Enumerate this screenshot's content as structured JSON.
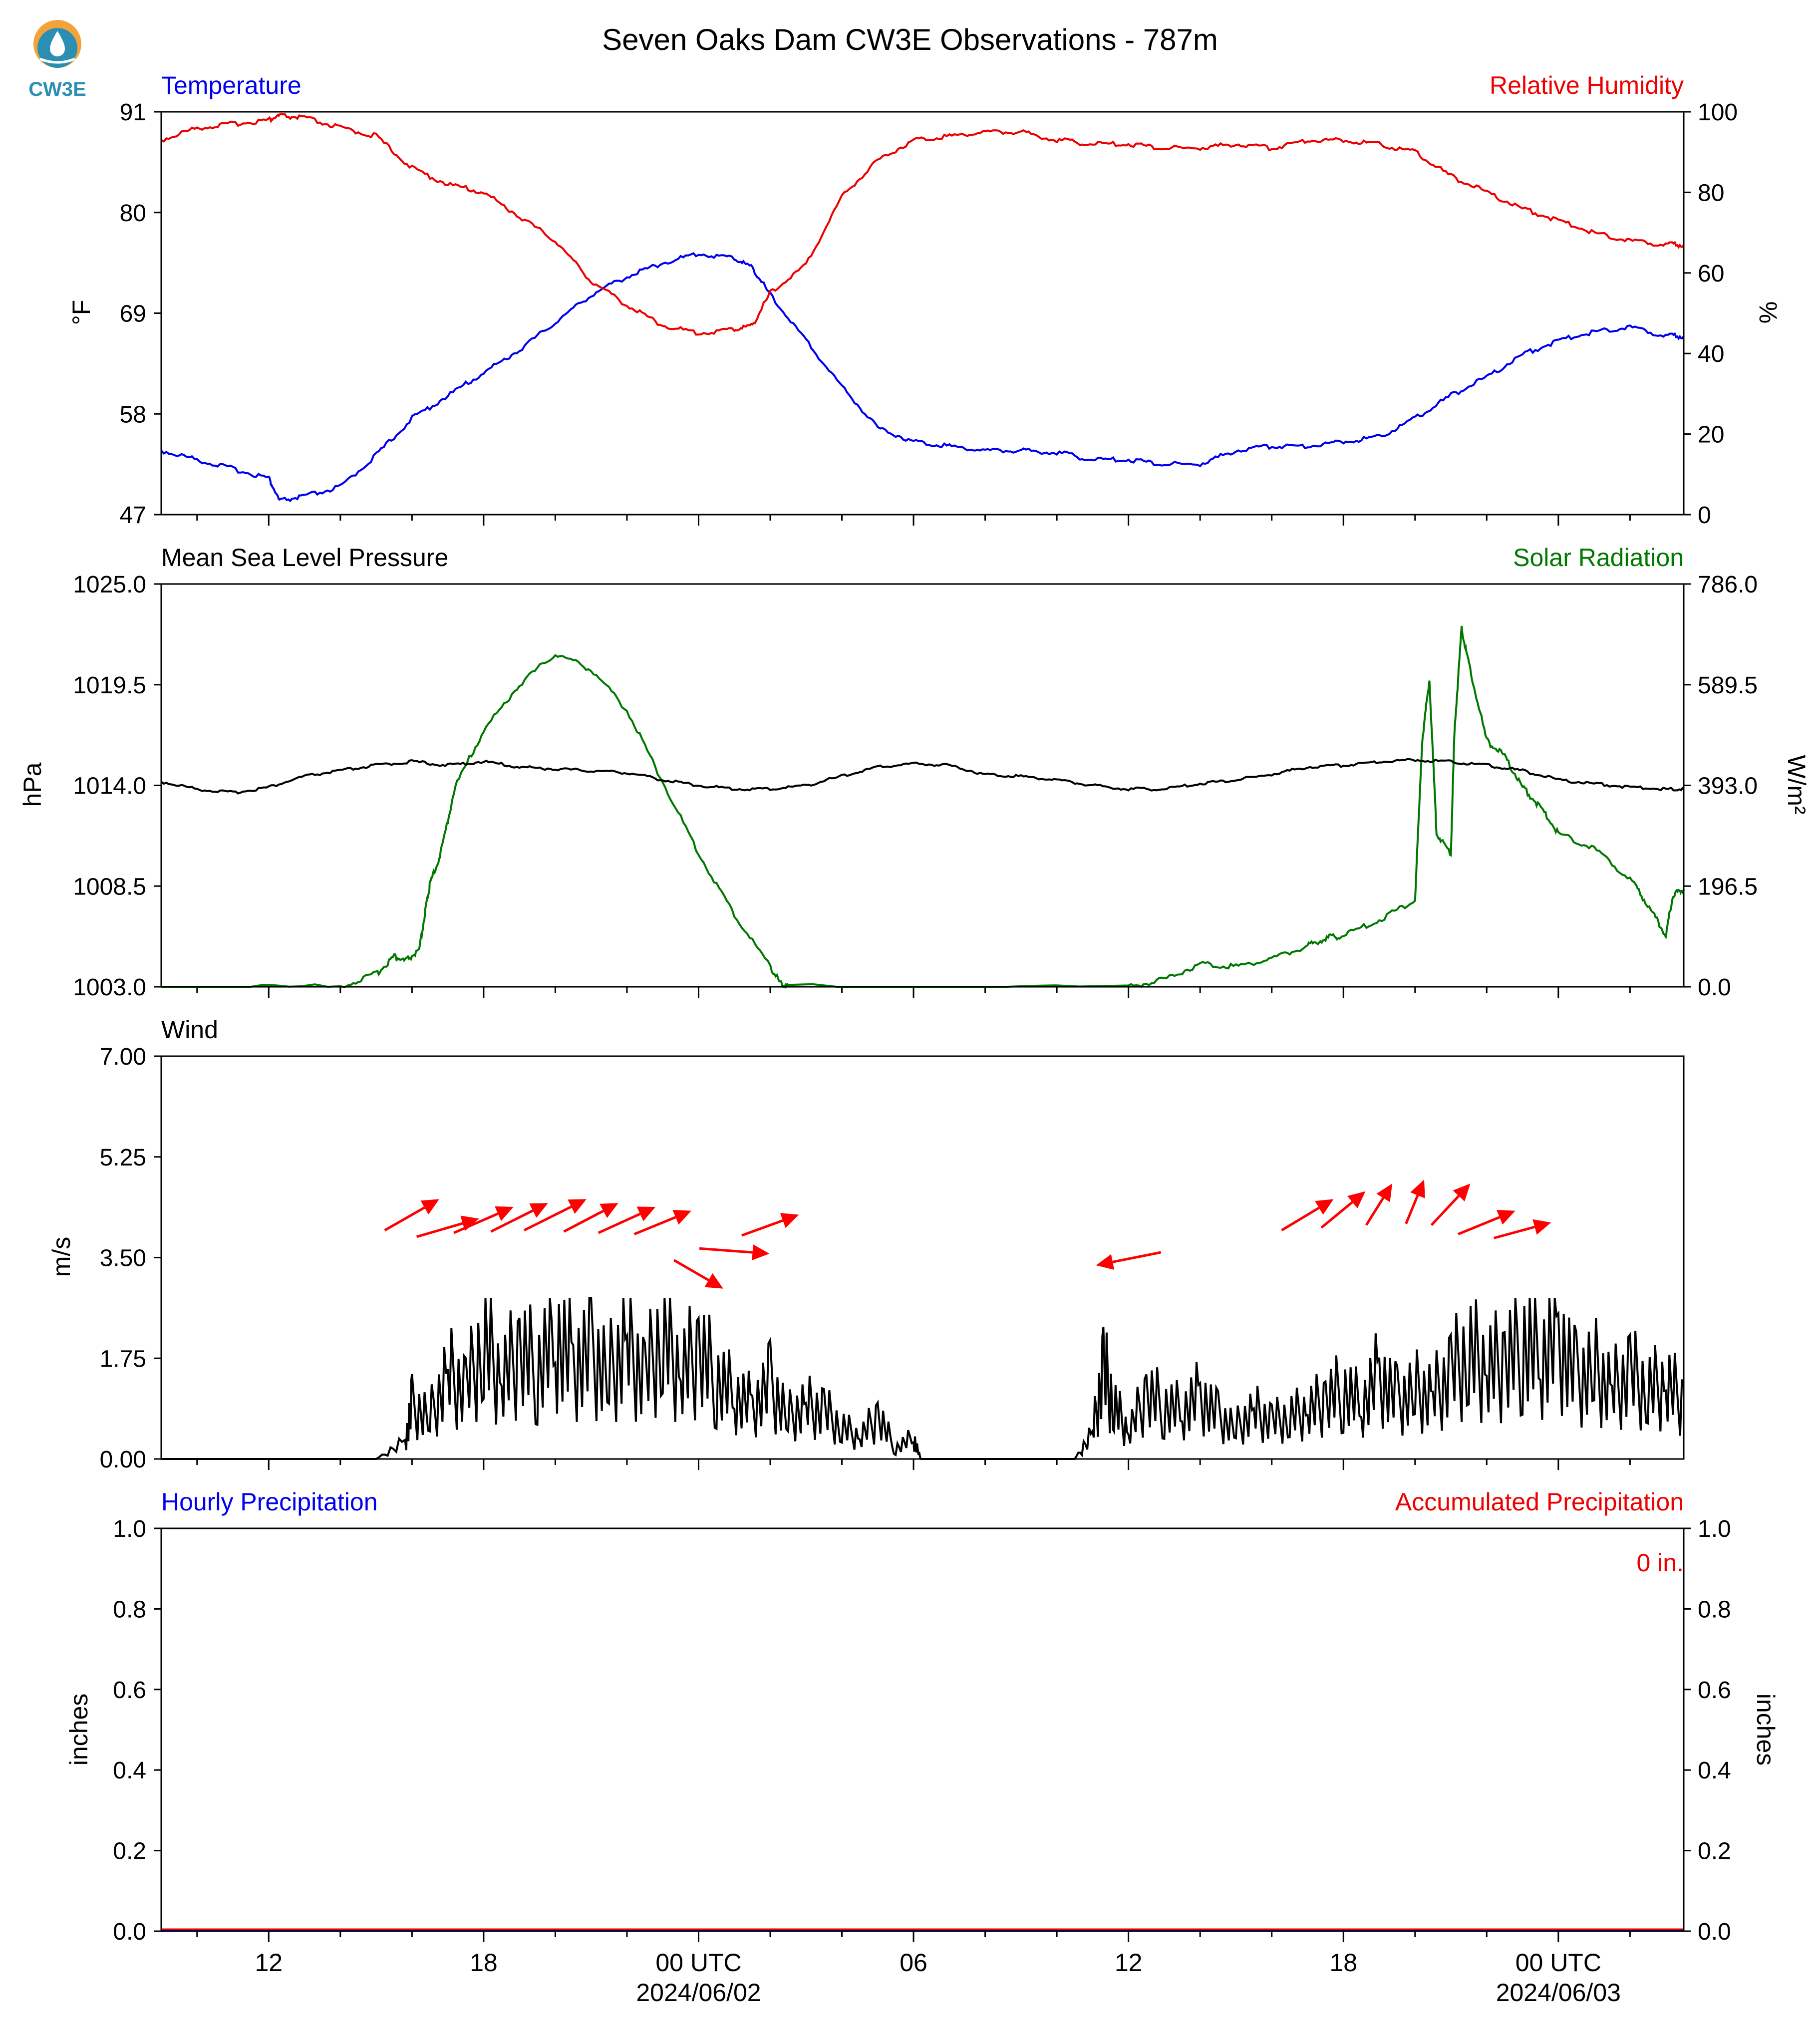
{
  "title": "Seven Oaks Dam CW3E Observations - 787m",
  "logo": {
    "text": "CW3E",
    "color": "#2a8fb3",
    "accent": "#f2a33a",
    "icon": "cw3e-logo-icon"
  },
  "x_axis": {
    "range_hours": [
      -15,
      27.5
    ],
    "major_ticks": [
      {
        "h": -12,
        "label": "12",
        "sub": ""
      },
      {
        "h": -6,
        "label": "18",
        "sub": ""
      },
      {
        "h": 0,
        "label": "00 UTC",
        "sub": "2024/06/02"
      },
      {
        "h": 6,
        "label": "06",
        "sub": ""
      },
      {
        "h": 12,
        "label": "12",
        "sub": ""
      },
      {
        "h": 18,
        "label": "18",
        "sub": ""
      },
      {
        "h": 24,
        "label": "00 UTC",
        "sub": "2024/06/03"
      }
    ],
    "minor_ticks": [
      -14,
      -10,
      -8,
      -4,
      -2,
      2,
      4,
      8,
      10,
      14,
      16,
      20,
      22,
      26
    ]
  },
  "colors": {
    "temperature": "#0000ee",
    "humidity": "#ee0000",
    "pressure": "#000000",
    "solar": "#007800",
    "wind_speed": "#000000",
    "wind_arrow": "#ff0000",
    "hourly_precip": "#0000ee",
    "accum_precip": "#ee0000"
  },
  "chart_data": [
    {
      "type": "line",
      "left_title": "Temperature",
      "right_title": "Relative Humidity",
      "ylabel_left": "°F",
      "ylabel_right": "%",
      "ylim_left": [
        47,
        91
      ],
      "ylim_right": [
        0,
        100
      ],
      "yticks_left": [
        "91",
        "80",
        "69",
        "58",
        "47"
      ],
      "yticks_right": [
        "100",
        "80",
        "60",
        "40",
        "20",
        "0"
      ],
      "x_hours": [
        -15,
        -14,
        -13,
        -12,
        -11.7,
        -11,
        -10,
        -9,
        -8,
        -7,
        -6,
        -5,
        -4,
        -3,
        -2,
        -1,
        0,
        1,
        1.5,
        2,
        3,
        4,
        5,
        6,
        7,
        8,
        9,
        10,
        11,
        12,
        13,
        14,
        15,
        16,
        17,
        18,
        19,
        20,
        21,
        22,
        23,
        24,
        25,
        26,
        27,
        27.5
      ],
      "series": [
        {
          "name": "Temperature",
          "unit": "°F",
          "values": [
            54,
            53,
            52,
            51,
            48.5,
            49,
            50,
            53.5,
            57.5,
            60,
            62.5,
            65,
            68,
            71,
            73,
            74.5,
            75.5,
            75,
            74,
            71,
            66,
            61,
            56.5,
            55,
            54.5,
            54,
            54,
            53.8,
            53,
            53,
            52.5,
            52.5,
            54,
            54.5,
            54.5,
            55,
            55.5,
            57.5,
            60,
            62,
            64.5,
            66,
            67,
            67.5,
            66.5,
            66.5
          ]
        },
        {
          "name": "Relative Humidity",
          "unit": "%",
          "values": [
            93,
            96,
            97,
            98,
            99,
            98.5,
            96,
            94,
            86,
            82,
            80,
            74,
            68,
            58,
            52,
            47,
            45,
            46,
            47,
            55,
            62,
            79,
            88,
            93,
            94,
            95,
            95,
            93,
            92,
            92,
            91,
            91,
            92,
            91,
            93,
            93,
            92,
            90,
            84,
            80,
            76,
            73,
            70,
            68,
            67,
            67
          ]
        }
      ]
    },
    {
      "type": "line",
      "left_title": "Mean Sea Level Pressure",
      "right_title": "Solar Radiation",
      "ylabel_left": "hPa",
      "ylabel_right": "W/m²",
      "ylim_left": [
        1003.0,
        1025.0
      ],
      "ylim_right": [
        0.0,
        786.0
      ],
      "yticks_left": [
        "1025.0",
        "1019.5",
        "1014.0",
        "1008.5",
        "1003.0"
      ],
      "yticks_right": [
        "786.0",
        "589.5",
        "393.0",
        "196.5",
        "0.0"
      ],
      "series": [
        {
          "name": "Mean Sea Level Pressure",
          "unit": "hPa",
          "x_hours": [
            -15,
            -14,
            -13,
            -12,
            -11,
            -10,
            -9,
            -8,
            -7,
            -6,
            -5,
            -4,
            -3,
            -2,
            -1,
            0,
            1,
            2,
            3,
            4,
            5,
            6,
            7,
            8,
            9,
            10,
            11,
            12,
            13,
            14,
            15,
            16,
            17,
            18,
            19,
            20,
            21,
            22,
            23,
            24,
            25,
            26,
            27,
            27.5
          ],
          "values": [
            1014.2,
            1013.8,
            1013.6,
            1013.9,
            1014.5,
            1014.8,
            1015.1,
            1015.3,
            1015.1,
            1015.3,
            1015.0,
            1014.9,
            1014.8,
            1014.7,
            1014.3,
            1014.0,
            1013.8,
            1013.8,
            1014.0,
            1014.5,
            1015.0,
            1015.2,
            1015.1,
            1014.6,
            1014.5,
            1014.3,
            1014.0,
            1013.8,
            1013.8,
            1014.1,
            1014.3,
            1014.6,
            1015.0,
            1015.1,
            1015.3,
            1015.4,
            1015.3,
            1015.1,
            1014.8,
            1014.3,
            1014.1,
            1013.9,
            1013.8,
            1013.8
          ]
        },
        {
          "name": "Solar Radiation",
          "unit": "W/m²",
          "x_hours": [
            -15,
            -10,
            -9,
            -8.5,
            -8.2,
            -7.8,
            -7.6,
            -7.5,
            -7.2,
            -6.8,
            -6,
            -5,
            -4,
            -3,
            -2,
            -1,
            0,
            1,
            2,
            2.3,
            2.5,
            12,
            13,
            14,
            15,
            16,
            17,
            17.5,
            18,
            19,
            20,
            20.2,
            20.4,
            20.6,
            21,
            21.1,
            21.3,
            21.5,
            22,
            22.5,
            23,
            23.5,
            24,
            25,
            26,
            26.5,
            27,
            27.2,
            27.5
          ],
          "values": [
            0,
            0,
            25,
            60,
            50,
            70,
            160,
            200,
            260,
            390,
            500,
            590,
            650,
            620,
            540,
            400,
            260,
            140,
            40,
            5,
            0,
            0,
            15,
            45,
            40,
            55,
            80,
            95,
            100,
            130,
            170,
            480,
            600,
            300,
            260,
            500,
            700,
            630,
            480,
            450,
            390,
            350,
            300,
            270,
            210,
            160,
            100,
            180,
            190
          ]
        }
      ]
    },
    {
      "type": "line",
      "left_title": "Wind",
      "ylabel_left": "m/s",
      "ylim_left": [
        0.0,
        7.0
      ],
      "yticks_left": [
        "7.00",
        "5.25",
        "3.50",
        "1.75",
        "0.00"
      ],
      "series": [
        {
          "name": "Wind Speed",
          "unit": "m/s",
          "x_hours": [
            -15,
            -9,
            -8.2,
            -8,
            -7.5,
            -7,
            -6.5,
            -6,
            -5.5,
            -5,
            -4.5,
            -4,
            -3.5,
            -3,
            -2.5,
            -2,
            -1.5,
            -1,
            -0.5,
            0,
            0.5,
            1,
            1.5,
            2,
            2.5,
            3,
            3.5,
            4,
            4.5,
            5,
            5.5,
            6,
            6.2,
            7,
            10.5,
            11,
            11.3,
            11.6,
            12,
            12.5,
            13,
            13.5,
            14,
            14.5,
            15,
            15.5,
            16,
            16.5,
            17,
            17.5,
            18,
            18.5,
            19,
            19.5,
            20,
            20.5,
            21,
            21.5,
            22,
            22.5,
            23,
            23.5,
            24,
            24.5,
            25,
            25.5,
            26,
            26.5,
            27,
            27.5
          ],
          "values": [
            0,
            0,
            0.3,
            1.0,
            0.8,
            1.6,
            1.3,
            2.2,
            1.5,
            2.0,
            1.7,
            2.3,
            1.8,
            2.0,
            1.6,
            2.2,
            1.5,
            2.4,
            1.6,
            2.0,
            1.5,
            1.2,
            1.0,
            1.4,
            0.8,
            1.0,
            0.9,
            0.6,
            0.4,
            0.8,
            0.2,
            0.4,
            0,
            0,
            0,
            0.5,
            1.7,
            1.0,
            0.5,
            1.2,
            1.0,
            0.9,
            1.2,
            0.8,
            0.6,
            0.9,
            0.7,
            0.8,
            0.9,
            1.1,
            1.3,
            1.0,
            1.6,
            1.1,
            1.3,
            1.2,
            1.6,
            2.0,
            1.7,
            1.8,
            2.2,
            1.9,
            2.3,
            1.5,
            1.7,
            1.3,
            1.6,
            1.3,
            1.4,
            1.1
          ]
        }
      ],
      "arrows": [
        {
          "h": -8,
          "u": 2.1,
          "v": 1.2
        },
        {
          "h": -7,
          "u": 2.4,
          "v": 0.7
        },
        {
          "h": -6,
          "u": 2.3,
          "v": 1.0
        },
        {
          "h": -5,
          "u": 2.2,
          "v": 1.1
        },
        {
          "h": -4,
          "u": 2.4,
          "v": 1.2
        },
        {
          "h": -3,
          "u": 2.1,
          "v": 1.1
        },
        {
          "h": -2,
          "u": 2.2,
          "v": 1.0
        },
        {
          "h": -1,
          "u": 2.2,
          "v": 0.9
        },
        {
          "h": 0,
          "u": 1.9,
          "v": -1.1
        },
        {
          "h": 1,
          "u": 2.7,
          "v": -0.2
        },
        {
          "h": 2,
          "u": 2.2,
          "v": 0.8
        },
        {
          "h": 12,
          "u": -2.5,
          "v": -0.5
        },
        {
          "h": 17,
          "u": 2.0,
          "v": 1.2
        },
        {
          "h": 18,
          "u": 1.7,
          "v": 1.4
        },
        {
          "h": 19,
          "u": 1.0,
          "v": 1.6
        },
        {
          "h": 20,
          "u": 0.7,
          "v": 1.7
        },
        {
          "h": 21,
          "u": 1.5,
          "v": 1.6
        },
        {
          "h": 22,
          "u": 2.2,
          "v": 0.9
        },
        {
          "h": 23,
          "u": 2.2,
          "v": 0.6
        }
      ]
    },
    {
      "type": "bar",
      "left_title": "Hourly Precipitation",
      "right_title": "Accumulated Precipitation",
      "ylabel_left": "inches",
      "ylabel_right": "inches",
      "ylim_left": [
        0.0,
        1.0
      ],
      "ylim_right": [
        0.0,
        1.0
      ],
      "yticks_left": [
        "1.0",
        "0.8",
        "0.6",
        "0.4",
        "0.2",
        "0.0"
      ],
      "yticks_right": [
        "1.0",
        "0.8",
        "0.6",
        "0.4",
        "0.2",
        "0.0"
      ],
      "annotation": "0 in.",
      "series": [
        {
          "name": "Hourly Precipitation",
          "unit": "in",
          "values": [
            0
          ]
        },
        {
          "name": "Accumulated Precipitation",
          "unit": "in",
          "values": [
            0
          ]
        }
      ]
    }
  ]
}
